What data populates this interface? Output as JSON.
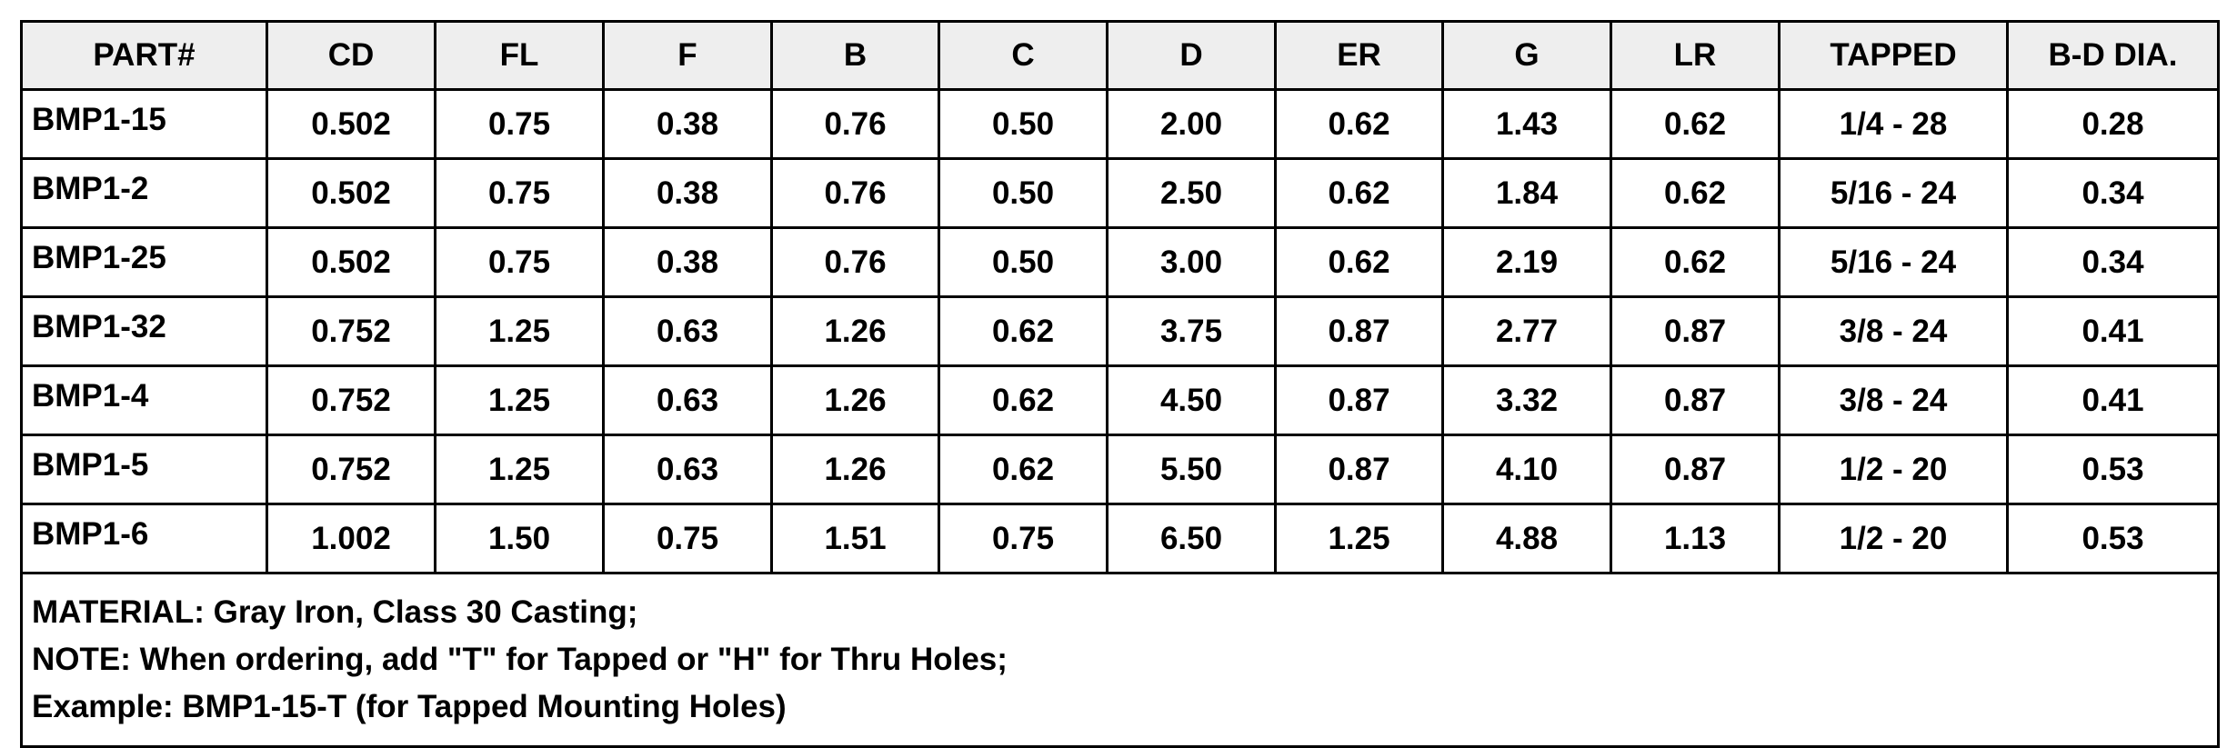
{
  "table": {
    "header": [
      "PART#",
      "CD",
      "FL",
      "F",
      "B",
      "C",
      "D",
      "ER",
      "G",
      "LR",
      "TAPPED",
      "B-D DIA."
    ],
    "rows": [
      [
        "BMP1-15",
        "0.502",
        "0.75",
        "0.38",
        "0.76",
        "0.50",
        "2.00",
        "0.62",
        "1.43",
        "0.62",
        "1/4 - 28",
        "0.28"
      ],
      [
        "BMP1-2",
        "0.502",
        "0.75",
        "0.38",
        "0.76",
        "0.50",
        "2.50",
        "0.62",
        "1.84",
        "0.62",
        "5/16 - 24",
        "0.34"
      ],
      [
        "BMP1-25",
        "0.502",
        "0.75",
        "0.38",
        "0.76",
        "0.50",
        "3.00",
        "0.62",
        "2.19",
        "0.62",
        "5/16 - 24",
        "0.34"
      ],
      [
        "BMP1-32",
        "0.752",
        "1.25",
        "0.63",
        "1.26",
        "0.62",
        "3.75",
        "0.87",
        "2.77",
        "0.87",
        "3/8 - 24",
        "0.41"
      ],
      [
        "BMP1-4",
        "0.752",
        "1.25",
        "0.63",
        "1.26",
        "0.62",
        "4.50",
        "0.87",
        "3.32",
        "0.87",
        "3/8 - 24",
        "0.41"
      ],
      [
        "BMP1-5",
        "0.752",
        "1.25",
        "0.63",
        "1.26",
        "0.62",
        "5.50",
        "0.87",
        "4.10",
        "0.87",
        "1/2 - 20",
        "0.53"
      ],
      [
        "BMP1-6",
        "1.002",
        "1.50",
        "0.75",
        "1.51",
        "0.75",
        "6.50",
        "1.25",
        "4.88",
        "1.13",
        "1/2 - 20",
        "0.53"
      ]
    ],
    "notes": [
      "MATERIAL: Gray Iron, Class 30 Casting;",
      "NOTE: When ordering, add \"T\" for Tapped or \"H\" for Thru Holes;",
      "Example: BMP1-15-T (for Tapped Mounting Holes)"
    ]
  }
}
